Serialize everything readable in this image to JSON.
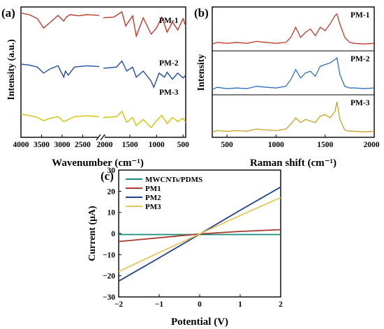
{
  "panels": {
    "a": {
      "label": "(a)",
      "ylabel": "Intensity (a.u.)",
      "xlabel": "Wavenumber (cm⁻¹)",
      "xticks": [
        "4000",
        "3500",
        "3000",
        "2500",
        "2000",
        "1500",
        "1000",
        "500"
      ],
      "series": [
        {
          "name": "PM-1",
          "color": "#c0392b"
        },
        {
          "name": "PM-2",
          "color": "#1f4e9c"
        },
        {
          "name": "PM-3",
          "color": "#d4c200"
        }
      ]
    },
    "b": {
      "label": "(b)",
      "ylabel": "Intensity",
      "xlabel": "Raman shift (cm⁻¹)",
      "xticks": [
        "500",
        "1000",
        "1500",
        "2000"
      ],
      "series": [
        {
          "name": "PM-1",
          "color": "#c0392b"
        },
        {
          "name": "PM-2",
          "color": "#2f6fc2"
        },
        {
          "name": "PM-3",
          "color": "#c9a227"
        }
      ]
    },
    "c": {
      "label": "(c)",
      "ylabel": "Current (μA)",
      "xlabel": "Potential (V)",
      "xticks": [
        "−2",
        "−1",
        "0",
        "1",
        "2"
      ],
      "yticks": [
        "−30",
        "−20",
        "−10",
        "0",
        "10",
        "20",
        "30"
      ],
      "legend": [
        "MWCNTs/PDMS",
        "PM1",
        "PM2",
        "PM3"
      ]
    }
  },
  "chart_data": [
    {
      "type": "line",
      "panel": "a",
      "xlabel": "Wavenumber (cm⁻¹)",
      "ylabel": "Intensity (a.u.)",
      "xlim": [
        4000,
        450
      ],
      "axis_break": [
        2100,
        2000
      ],
      "series": [
        {
          "name": "PM-1",
          "color": "#c0392b",
          "x": [
            4000,
            3800,
            3600,
            3450,
            3300,
            3100,
            2960,
            2900,
            2800,
            2600,
            2400,
            2100,
            2000,
            1800,
            1650,
            1580,
            1450,
            1380,
            1250,
            1100,
            1000,
            900,
            800,
            700,
            600,
            500,
            450
          ],
          "y": [
            0.92,
            0.88,
            0.78,
            0.55,
            0.68,
            0.86,
            0.72,
            0.82,
            0.88,
            0.85,
            0.88,
            0.86,
            0.8,
            0.82,
            0.95,
            0.6,
            0.85,
            0.35,
            0.8,
            0.4,
            0.55,
            0.82,
            0.45,
            0.7,
            0.5,
            0.78,
            0.6
          ]
        },
        {
          "name": "PM-2",
          "color": "#1f4e9c",
          "x": [
            4000,
            3800,
            3600,
            3450,
            3300,
            3100,
            2960,
            2920,
            2850,
            2700,
            2400,
            2100,
            2000,
            1750,
            1650,
            1560,
            1450,
            1380,
            1250,
            1100,
            1050,
            950,
            850,
            800,
            700,
            600,
            500,
            450
          ],
          "y": [
            0.62,
            0.6,
            0.55,
            0.4,
            0.5,
            0.58,
            0.3,
            0.45,
            0.35,
            0.55,
            0.58,
            0.56,
            0.52,
            0.55,
            0.7,
            0.45,
            0.55,
            0.3,
            0.45,
            0.2,
            0.05,
            0.4,
            0.3,
            0.42,
            0.25,
            0.4,
            0.28,
            0.35
          ]
        },
        {
          "name": "PM-3",
          "color": "#d4c200",
          "x": [
            4000,
            3800,
            3600,
            3450,
            3300,
            3100,
            2960,
            2850,
            2700,
            2400,
            2100,
            2000,
            1750,
            1650,
            1560,
            1450,
            1380,
            1250,
            1100,
            1000,
            900,
            800,
            700,
            600,
            500,
            450
          ],
          "y": [
            0.28,
            0.25,
            0.2,
            0.12,
            0.18,
            0.22,
            0.1,
            0.15,
            0.22,
            0.24,
            0.22,
            0.2,
            0.22,
            0.35,
            0.08,
            0.2,
            0.0,
            0.15,
            -0.05,
            0.12,
            0.25,
            0.05,
            0.2,
            0.1,
            0.18,
            0.08
          ]
        }
      ]
    },
    {
      "type": "line",
      "panel": "b",
      "xlabel": "Raman shift (cm⁻¹)",
      "ylabel": "Intensity",
      "xlim": [
        350,
        2000
      ],
      "series": [
        {
          "name": "PM-1",
          "color": "#c0392b",
          "x": [
            350,
            400,
            500,
            600,
            700,
            800,
            900,
            1000,
            1100,
            1150,
            1200,
            1250,
            1300,
            1350,
            1400,
            1450,
            1500,
            1550,
            1600,
            1620,
            1650,
            1700,
            1750,
            1800,
            1900,
            2000
          ],
          "y": [
            0.1,
            0.15,
            0.12,
            0.15,
            0.12,
            0.18,
            0.15,
            0.12,
            0.15,
            0.3,
            0.6,
            0.3,
            0.45,
            0.55,
            0.35,
            0.6,
            0.5,
            0.7,
            0.95,
            1.0,
            0.7,
            0.3,
            0.15,
            0.12,
            0.1,
            0.12
          ]
        },
        {
          "name": "PM-2",
          "color": "#2f6fc2",
          "x": [
            350,
            400,
            500,
            600,
            700,
            800,
            900,
            1000,
            1100,
            1150,
            1200,
            1250,
            1300,
            1350,
            1400,
            1450,
            1500,
            1550,
            1600,
            1620,
            1650,
            1700,
            1750,
            1800,
            1900,
            2000
          ],
          "y": [
            0.05,
            0.12,
            0.08,
            0.1,
            0.08,
            0.15,
            0.12,
            0.1,
            0.15,
            0.35,
            0.65,
            0.4,
            0.55,
            0.6,
            0.45,
            0.75,
            0.8,
            0.85,
            0.95,
            1.0,
            0.5,
            0.15,
            0.1,
            0.1,
            0.08,
            0.1
          ]
        },
        {
          "name": "PM-3",
          "color": "#c9a227",
          "x": [
            350,
            400,
            500,
            600,
            700,
            800,
            900,
            1000,
            1100,
            1150,
            1200,
            1250,
            1300,
            1350,
            1400,
            1450,
            1500,
            1550,
            1600,
            1620,
            1650,
            1700,
            1750,
            1800,
            1900,
            2000
          ],
          "y": [
            0.05,
            0.1,
            0.08,
            0.1,
            0.08,
            0.15,
            0.12,
            0.1,
            0.15,
            0.3,
            0.5,
            0.35,
            0.45,
            0.4,
            0.35,
            0.55,
            0.6,
            0.5,
            0.7,
            1.0,
            0.45,
            0.12,
            0.08,
            0.08,
            0.06,
            0.08
          ]
        }
      ]
    },
    {
      "type": "line",
      "panel": "c",
      "xlabel": "Potential (V)",
      "ylabel": "Current (μA)",
      "xlim": [
        -2,
        2
      ],
      "ylim": [
        -30,
        30
      ],
      "legend_position": "top-left",
      "series": [
        {
          "name": "MWCNTs/PDMS",
          "color": "#1a8a7a",
          "x": [
            -2,
            -1,
            0,
            1,
            2
          ],
          "y": [
            -0.5,
            -0.5,
            -0.5,
            -0.5,
            -0.5
          ]
        },
        {
          "name": "PM1",
          "color": "#a83a2a",
          "x": [
            -2,
            -1,
            0,
            1,
            2
          ],
          "y": [
            -3.8,
            -2.0,
            -0.2,
            1.0,
            1.8
          ]
        },
        {
          "name": "PM2",
          "color": "#1f3f8f",
          "x": [
            -2,
            -1,
            0,
            1,
            2
          ],
          "y": [
            -22.5,
            -11.5,
            -0.3,
            11.0,
            22.0
          ]
        },
        {
          "name": "PM3",
          "color": "#e6c75a",
          "x": [
            -2,
            -1,
            0,
            1,
            2
          ],
          "y": [
            -18.0,
            -9.0,
            -0.2,
            8.5,
            17.0
          ]
        }
      ]
    }
  ]
}
